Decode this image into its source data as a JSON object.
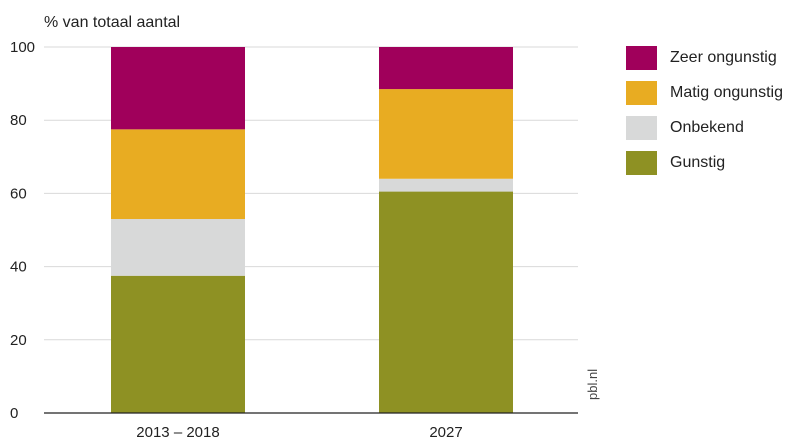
{
  "chart_data": {
    "type": "bar",
    "stacked": true,
    "ylabel": "% van totaal aantal",
    "ylim": [
      0,
      100
    ],
    "yticks": [
      0,
      20,
      40,
      60,
      80,
      100
    ],
    "grid": true,
    "categories": [
      "2013 – 2018",
      "2027"
    ],
    "series": [
      {
        "name": "Gunstig",
        "color": "#8e9123",
        "values": [
          37.5,
          60.5
        ]
      },
      {
        "name": "Onbekend",
        "color": "#d8d9d9",
        "values": [
          15.5,
          3.5
        ]
      },
      {
        "name": "Matig ongunstig",
        "color": "#e8ac22",
        "values": [
          24.5,
          24.5
        ]
      },
      {
        "name": "Zeer ongunstig",
        "color": "#a0005b",
        "values": [
          22.5,
          11.5
        ]
      }
    ],
    "legend_position": "right",
    "legend_order": [
      "Zeer ongunstig",
      "Matig ongunstig",
      "Onbekend",
      "Gunstig"
    ]
  },
  "source_label": "pbl.nl"
}
